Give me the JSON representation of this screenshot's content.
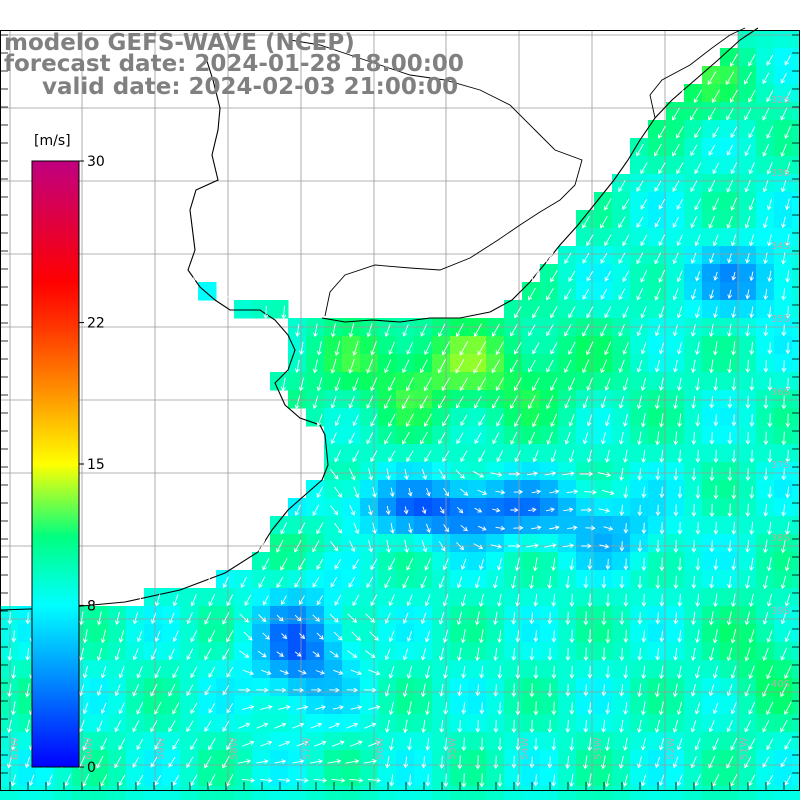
{
  "header": {
    "model": "modelo GEFS-WAVE (NCEP)",
    "forecast_date": "forecast date: 2024-01-28 18:00:00",
    "valid_date": "valid date: 2024-02-03 21:00:00"
  },
  "colorbar": {
    "unit": "[m/s]",
    "ticks": [
      "30",
      "22",
      "15",
      "8",
      "0"
    ],
    "tick_values": [
      30,
      22,
      15,
      8,
      0
    ],
    "min": 0,
    "max": 30
  },
  "grid": {
    "lat_labels": [
      "32S",
      "33S",
      "34S",
      "35S",
      "36S",
      "37S",
      "38S",
      "39S",
      "40S"
    ],
    "lon_labels": [
      "61W",
      "60W",
      "59W",
      "58W",
      "57W",
      "56W",
      "55W",
      "54W",
      "53W",
      "52W",
      "51W"
    ]
  },
  "colors": {
    "land": "#ffffff",
    "grid_line": "#9a9a9a",
    "coast": "#000000",
    "arrow": "#ffffff",
    "header_text": "#808080"
  }
}
